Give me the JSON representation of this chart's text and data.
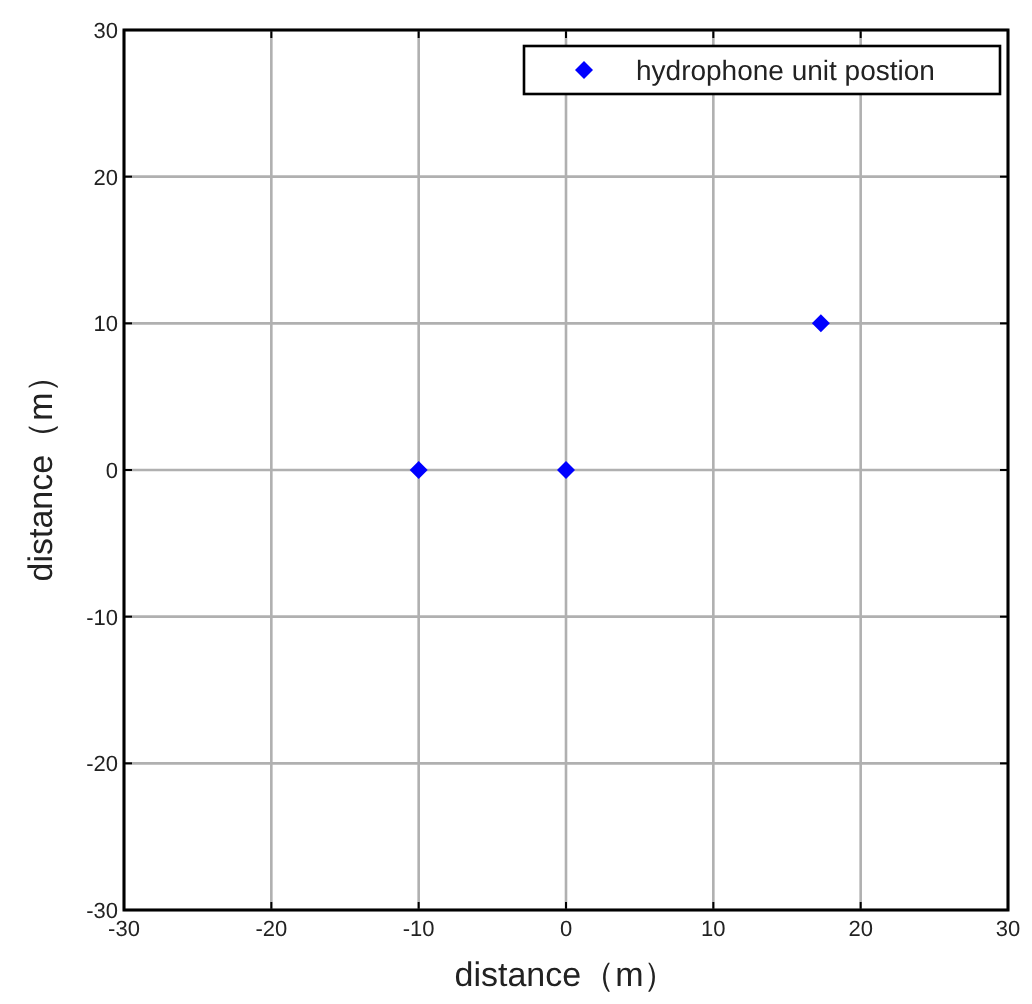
{
  "chart_data": {
    "type": "scatter",
    "xlabel": "distance（m）",
    "ylabel": "distance（m）",
    "xlim": [
      -30,
      30
    ],
    "ylim": [
      -30,
      30
    ],
    "xticks": [
      -30,
      -20,
      -10,
      0,
      10,
      20,
      30
    ],
    "yticks": [
      -30,
      -20,
      -10,
      0,
      10,
      20,
      30
    ],
    "grid": true,
    "legend": "top right",
    "marker": "diamond",
    "series": [
      {
        "name": "hydrophone unit postion",
        "color": "#0000ff",
        "x": [
          -10,
          0,
          17.3
        ],
        "values": [
          0,
          0,
          10
        ]
      }
    ]
  }
}
